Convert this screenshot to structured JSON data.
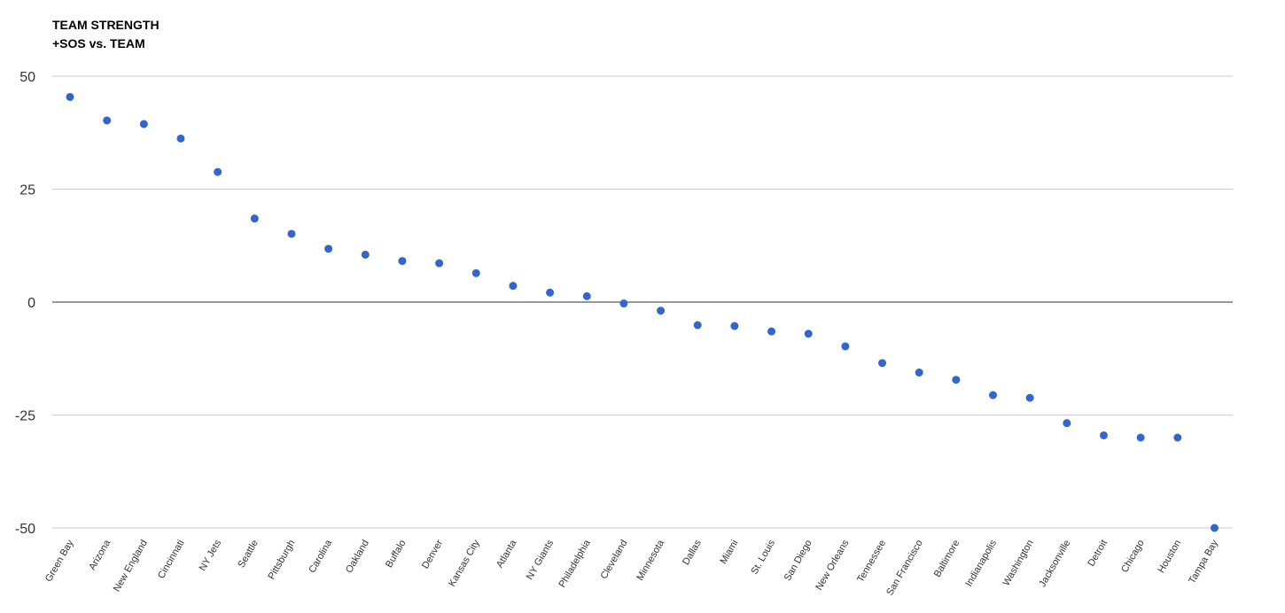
{
  "chart_data": {
    "type": "scatter",
    "title": "TEAM STRENGTH",
    "subtitle": "+SOS vs. TEAM",
    "xlabel": "",
    "ylabel": "",
    "categories": [
      "Green Bay",
      "Arizona",
      "New England",
      "Cincinnati",
      "NY Jets",
      "Seattle",
      "Pittsburgh",
      "Carolina",
      "Oakland",
      "Buffalo",
      "Denver",
      "Kansas City",
      "Atlanta",
      "NY Giants",
      "Philadelphia",
      "Cleveland",
      "Minnesota",
      "Dallas",
      "Miami",
      "St. Louis",
      "San Diego",
      "New Orleans",
      "Tennessee",
      "San Francisco",
      "Baltimore",
      "Indianapolis",
      "Washington",
      "Jacksonville",
      "Detroit",
      "Chicago",
      "Houston",
      "Tampa Bay"
    ],
    "values": [
      45.4,
      40.2,
      39.4,
      36.2,
      28.8,
      18.5,
      15.1,
      11.8,
      10.5,
      9.1,
      8.6,
      6.4,
      3.6,
      2.1,
      1.3,
      -0.3,
      -1.9,
      -5.1,
      -5.3,
      -6.5,
      -7.0,
      -9.8,
      -13.5,
      -15.6,
      -17.2,
      -20.6,
      -21.2,
      -26.8,
      -29.5,
      -30.0,
      -30.0,
      -50.0
    ],
    "ylim": [
      -50,
      50
    ],
    "yticks": [
      50,
      25,
      0,
      -25,
      -50
    ],
    "grid": true,
    "legend": "none",
    "point_color": "#3366cc",
    "zero_line_color": "#333333",
    "grid_color": "#cccccc"
  }
}
